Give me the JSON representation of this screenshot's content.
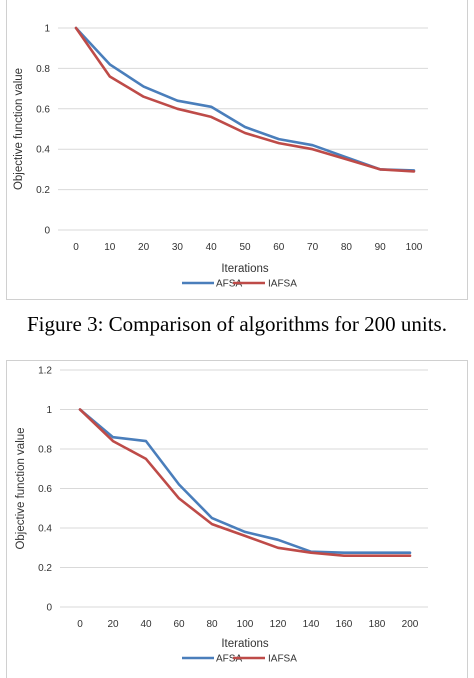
{
  "caption": "Figure 3: Comparison of algorithms for 200 units.",
  "chart_data": [
    {
      "type": "line",
      "xlabel": "Iterations",
      "ylabel": "Objective function value",
      "ylim": [
        0,
        1
      ],
      "yticks": [
        "0",
        "0.2",
        "0.4",
        "0.6",
        "0.8",
        "1"
      ],
      "x": [
        0,
        10,
        20,
        30,
        40,
        50,
        60,
        70,
        80,
        90,
        100
      ],
      "grid": "horizontal",
      "legend": "bottom",
      "series": [
        {
          "name": "AFSA",
          "color": "#4a7ebb",
          "values": [
            1,
            0.82,
            0.71,
            0.64,
            0.61,
            0.51,
            0.45,
            0.42,
            0.36,
            0.3,
            0.295
          ]
        },
        {
          "name": "IAFSA",
          "color": "#be4b48",
          "values": [
            1,
            0.76,
            0.66,
            0.6,
            0.56,
            0.48,
            0.43,
            0.4,
            0.35,
            0.3,
            0.29
          ]
        }
      ]
    },
    {
      "type": "line",
      "xlabel": "Iterations",
      "ylabel": "Objective function value",
      "ylim": [
        0,
        1.2
      ],
      "yticks": [
        "0",
        "0.2",
        "0.4",
        "0.6",
        "0.8",
        "1",
        "1.2"
      ],
      "x": [
        0,
        20,
        40,
        60,
        80,
        100,
        120,
        140,
        160,
        180,
        200
      ],
      "grid": "horizontal",
      "legend": "bottom",
      "series": [
        {
          "name": "AFSA",
          "color": "#4a7ebb",
          "values": [
            1,
            0.86,
            0.84,
            0.62,
            0.45,
            0.38,
            0.34,
            0.28,
            0.275,
            0.275,
            0.275
          ]
        },
        {
          "name": "IAFSA",
          "color": "#be4b48",
          "values": [
            1,
            0.84,
            0.75,
            0.55,
            0.42,
            0.36,
            0.3,
            0.275,
            0.26,
            0.26,
            0.26
          ]
        }
      ]
    }
  ]
}
